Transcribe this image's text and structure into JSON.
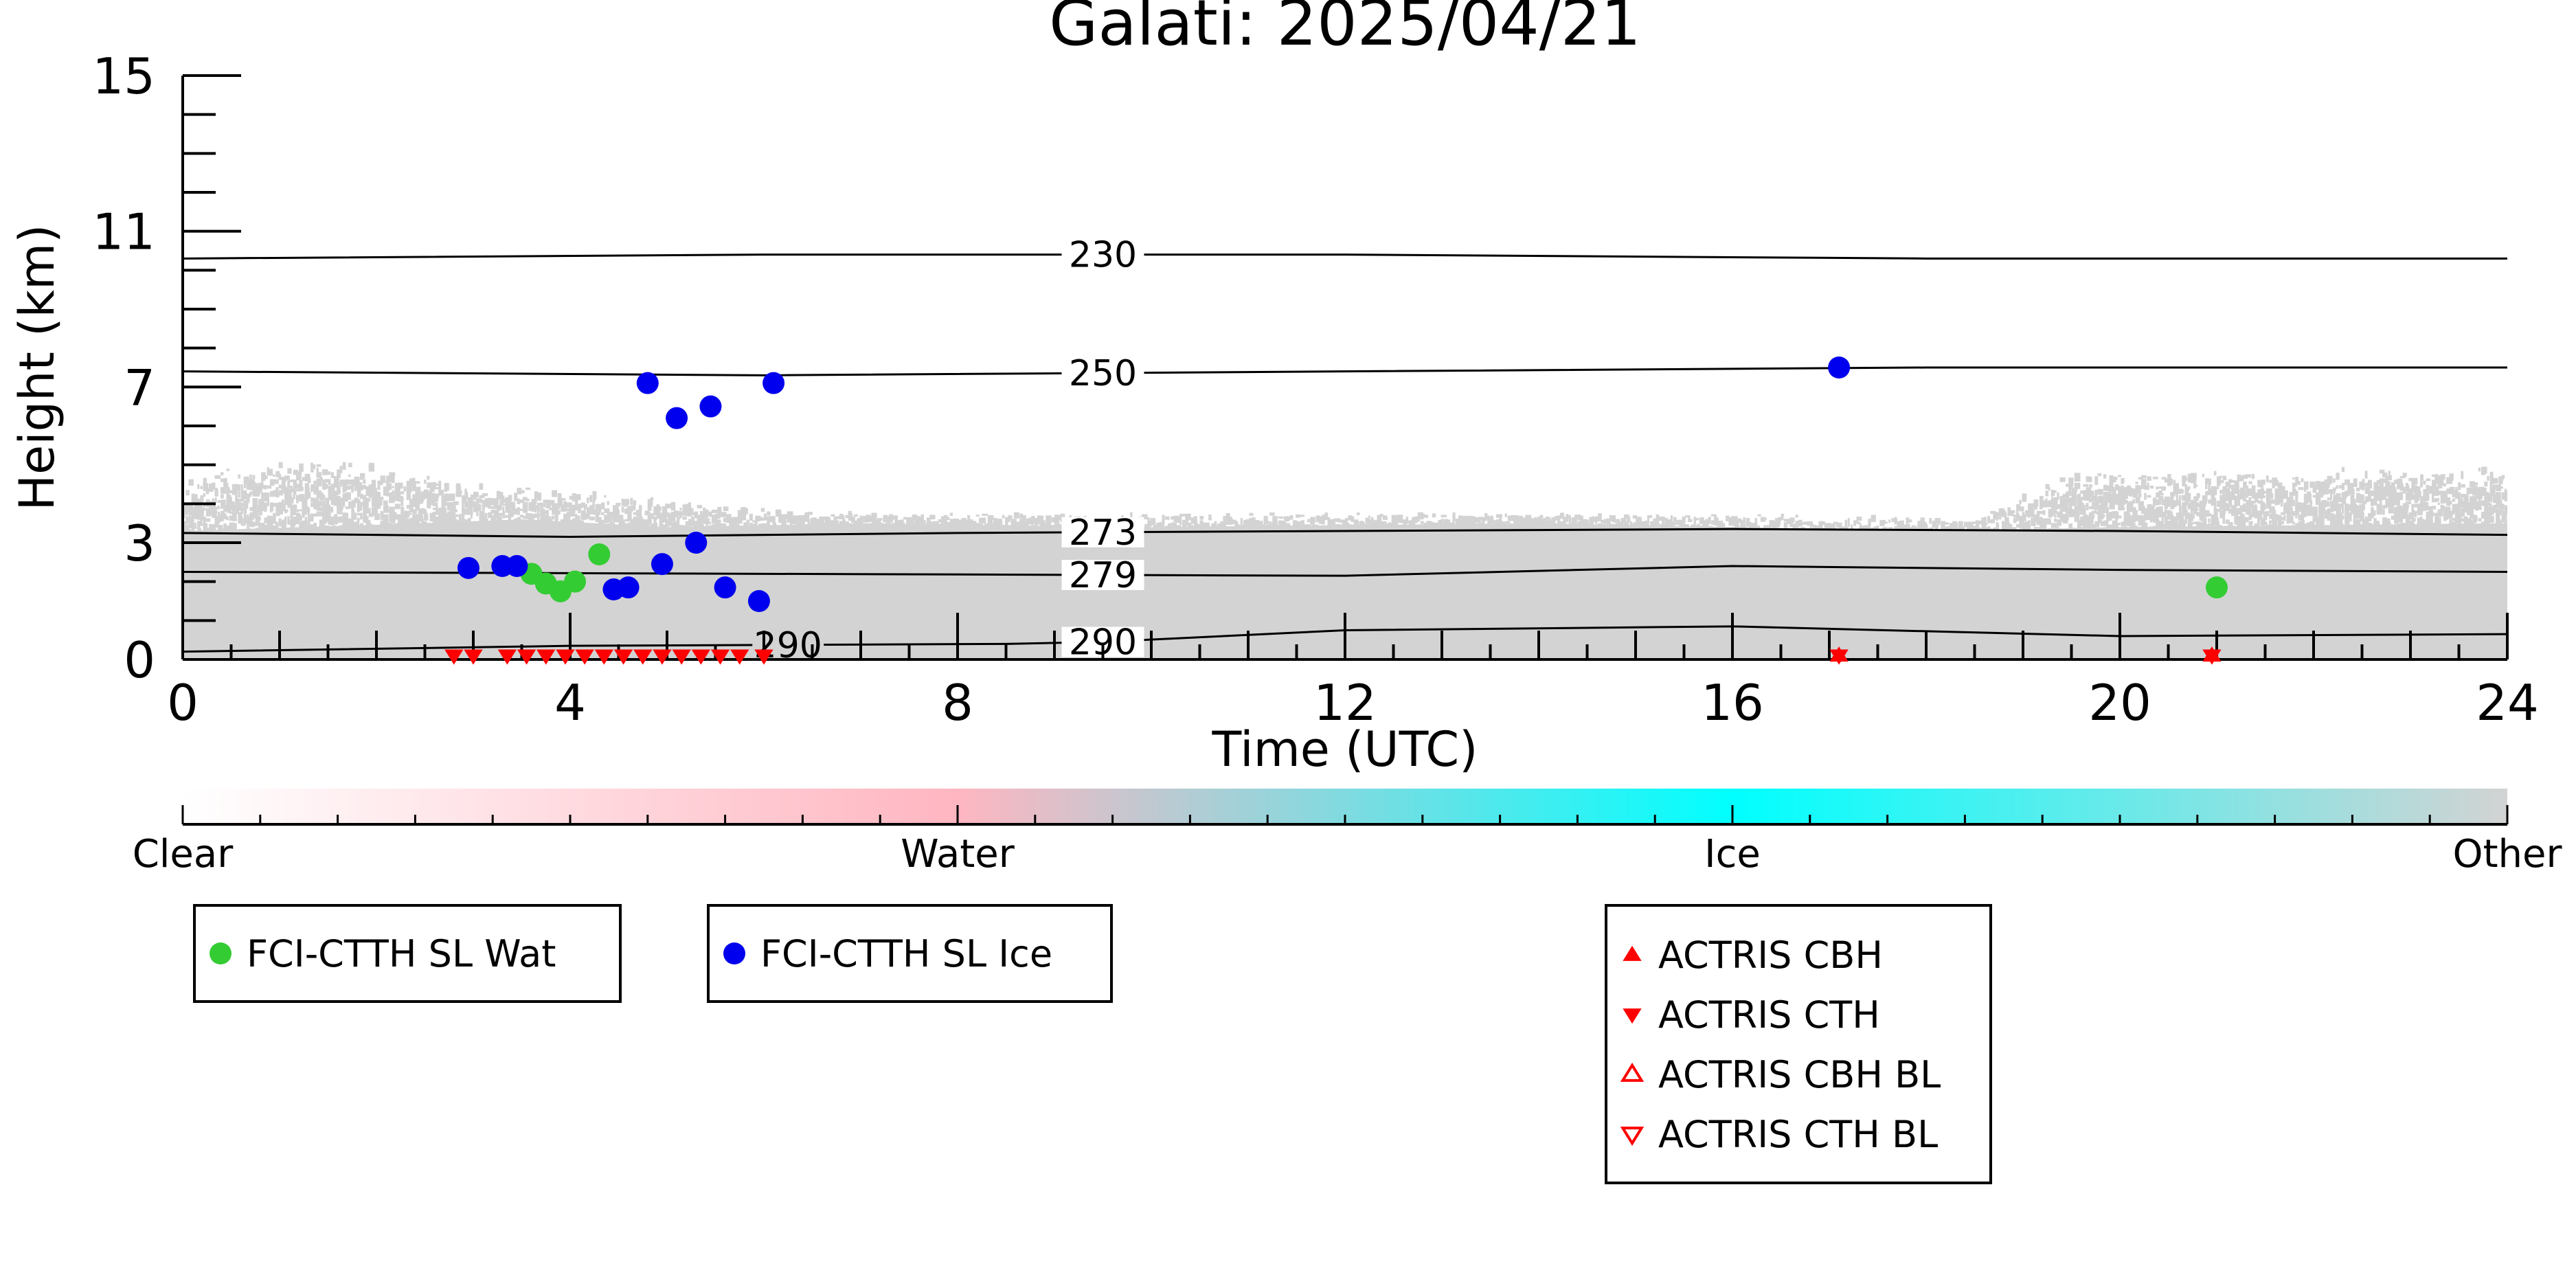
{
  "chart_data": {
    "type": "scatter",
    "title": "Galati: 2025/04/21",
    "xlabel": "Time (UTC)",
    "ylabel": "Height (km)",
    "xlim": [
      0,
      24
    ],
    "ylim": [
      0,
      15
    ],
    "x_ticks": [
      "0",
      "4",
      "8",
      "12",
      "16",
      "20",
      "24"
    ],
    "y_ticks": [
      "0",
      "3",
      "7",
      "11",
      "15"
    ],
    "temperature_contours": [
      {
        "label": "230",
        "points": [
          [
            0,
            10.3
          ],
          [
            6,
            10.4
          ],
          [
            12,
            10.4
          ],
          [
            18,
            10.3
          ],
          [
            24,
            10.3
          ]
        ]
      },
      {
        "label": "250",
        "points": [
          [
            0,
            7.4
          ],
          [
            6,
            7.3
          ],
          [
            12,
            7.4
          ],
          [
            18,
            7.5
          ],
          [
            24,
            7.5
          ]
        ]
      },
      {
        "label": "273",
        "points": [
          [
            0,
            3.25
          ],
          [
            4,
            3.15
          ],
          [
            8,
            3.25
          ],
          [
            12,
            3.3
          ],
          [
            16,
            3.35
          ],
          [
            20,
            3.3
          ],
          [
            24,
            3.2
          ]
        ]
      },
      {
        "label": "279",
        "points": [
          [
            0,
            2.25
          ],
          [
            6,
            2.2
          ],
          [
            12,
            2.15
          ],
          [
            16,
            2.4
          ],
          [
            20,
            2.3
          ],
          [
            24,
            2.25
          ]
        ]
      },
      {
        "label": "290",
        "points": [
          [
            0,
            0.2
          ],
          [
            4,
            0.35
          ],
          [
            8.5,
            0.4
          ],
          [
            9.5,
            0.45
          ],
          [
            12,
            0.75
          ],
          [
            16,
            0.85
          ],
          [
            20,
            0.6
          ],
          [
            24,
            0.65
          ]
        ]
      }
    ],
    "series": [
      {
        "name": "FCI-CTTH SL Wat",
        "color": "#33cc33",
        "marker": "circle",
        "points": [
          [
            3.6,
            2.2
          ],
          [
            3.75,
            1.95
          ],
          [
            3.9,
            1.75
          ],
          [
            4.05,
            2.0
          ],
          [
            4.3,
            2.7
          ],
          [
            21.0,
            1.85
          ]
        ]
      },
      {
        "name": "FCI-CTTH SL Ice",
        "color": "#0000ee",
        "marker": "circle",
        "points": [
          [
            2.95,
            2.35
          ],
          [
            3.3,
            2.4
          ],
          [
            3.45,
            2.4
          ],
          [
            4.45,
            1.8
          ],
          [
            4.6,
            1.85
          ],
          [
            4.8,
            7.1
          ],
          [
            4.95,
            2.45
          ],
          [
            5.1,
            6.2
          ],
          [
            5.3,
            3.0
          ],
          [
            5.45,
            6.5
          ],
          [
            5.6,
            1.85
          ],
          [
            5.95,
            1.5
          ],
          [
            6.1,
            7.1
          ],
          [
            17.1,
            7.5
          ]
        ]
      },
      {
        "name": "ACTRIS CBH",
        "color": "#ff0000",
        "marker": "triangle-up",
        "points": [
          [
            17.1,
            0.1
          ],
          [
            20.95,
            0.1
          ]
        ]
      },
      {
        "name": "ACTRIS CTH",
        "color": "#ff0000",
        "marker": "triangle-down",
        "points": [
          [
            2.8,
            0.1
          ],
          [
            3.0,
            0.1
          ],
          [
            3.35,
            0.1
          ],
          [
            3.55,
            0.1
          ],
          [
            3.75,
            0.1
          ],
          [
            3.95,
            0.1
          ],
          [
            4.15,
            0.1
          ],
          [
            4.35,
            0.1
          ],
          [
            4.55,
            0.1
          ],
          [
            4.75,
            0.1
          ],
          [
            4.95,
            0.1
          ],
          [
            5.15,
            0.1
          ],
          [
            5.35,
            0.1
          ],
          [
            5.55,
            0.1
          ],
          [
            5.75,
            0.1
          ],
          [
            6.0,
            0.1
          ],
          [
            17.1,
            0.1
          ],
          [
            20.95,
            0.1
          ]
        ]
      },
      {
        "name": "ACTRIS CBH BL",
        "color": "#ff0000",
        "marker": "triangle-up-open",
        "points": []
      },
      {
        "name": "ACTRIS CTH BL",
        "color": "#ff0000",
        "marker": "triangle-down-open",
        "points": []
      }
    ],
    "cloud_mask": {
      "color": "#d3d3d3",
      "lower_layer_top": [
        [
          0,
          3.3
        ],
        [
          2.5,
          3.5
        ],
        [
          3.5,
          3.6
        ],
        [
          5,
          3.4
        ],
        [
          7,
          3.5
        ],
        [
          10,
          3.4
        ],
        [
          14,
          3.5
        ],
        [
          18,
          3.3
        ],
        [
          20,
          3.4
        ],
        [
          24,
          3.5
        ]
      ],
      "upper_speckle_top": [
        [
          0,
          4.8
        ],
        [
          1.5,
          5.3
        ],
        [
          3,
          4.6
        ],
        [
          4.5,
          4.3
        ],
        [
          6,
          3.9
        ],
        [
          8,
          3.8
        ],
        [
          12,
          3.8
        ],
        [
          16,
          3.8
        ],
        [
          18.5,
          3.7
        ],
        [
          19.5,
          4.9
        ],
        [
          24,
          5.0
        ]
      ]
    },
    "colorbar": {
      "labels": [
        "Clear",
        "Water",
        "Ice",
        "Other"
      ],
      "colors": [
        "#ffffff",
        "#ffb6c1",
        "#00ffff",
        "#d3d3d3"
      ]
    },
    "legends": [
      [
        "FCI-CTTH SL Wat"
      ],
      [
        "FCI-CTTH SL Ice"
      ],
      [
        "ACTRIS CBH",
        "ACTRIS CTH",
        "ACTRIS CBH BL",
        "ACTRIS CTH BL"
      ]
    ]
  }
}
